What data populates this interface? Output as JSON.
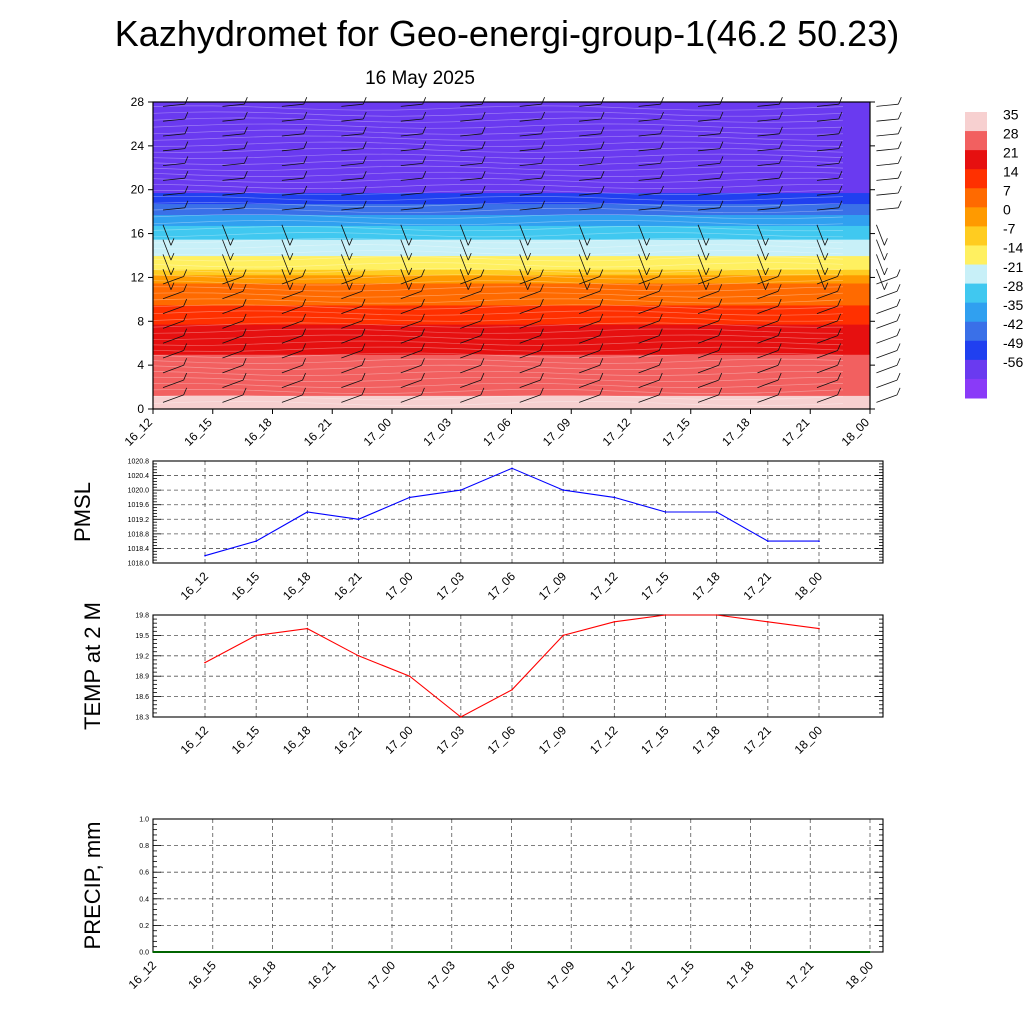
{
  "title": "Kazhydromet for Geo-energi-group-1(46.2 50.23)",
  "subtitle": "16 May 2025",
  "colors": {
    "pmsl_line": "#0000ff",
    "temp_line": "#ff0000",
    "precip_line": "#006400",
    "grid": "#555555"
  },
  "chart_data": [
    {
      "type": "heatmap",
      "title": "",
      "xlabel": "",
      "ylabel": "",
      "x_ticks": [
        "16_12",
        "16_15",
        "16_18",
        "16_21",
        "17_00",
        "17_03",
        "17_06",
        "17_09",
        "17_12",
        "17_15",
        "17_18",
        "17_21",
        "18_00"
      ],
      "ylim": [
        0,
        28
      ],
      "y_ticks": [
        "0",
        "4",
        "8",
        "12",
        "16",
        "20",
        "24",
        "28"
      ],
      "colorbar": {
        "labels": [
          "35",
          "28",
          "21",
          "14",
          "7",
          "0",
          "-7",
          "-14",
          "-21",
          "-28",
          "-35",
          "-42",
          "-49",
          "-56"
        ],
        "colors": [
          "#f7d0d0",
          "#f26060",
          "#e61010",
          "#ff3000",
          "#ff6a00",
          "#ff9a00",
          "#ffcc20",
          "#fff060",
          "#c8f0f8",
          "#40c8f0",
          "#30a0f0",
          "#3a70e8",
          "#2040f0",
          "#6a3af0",
          "#8a3af8"
        ]
      },
      "temperature_profile": {
        "levels": [
          0,
          4,
          8,
          12,
          13,
          16,
          20,
          24,
          28
        ],
        "values": [
          33,
          27,
          17,
          2,
          -12,
          -25,
          -52,
          -56,
          -56
        ]
      }
    },
    {
      "type": "line",
      "ylabel": "PMSL",
      "categories": [
        "16_12",
        "16_15",
        "16_18",
        "16_21",
        "17_00",
        "17_03",
        "17_06",
        "17_09",
        "17_12",
        "17_15",
        "17_18",
        "17_21",
        "18_00"
      ],
      "values": [
        1018.2,
        1018.6,
        1019.4,
        1019.2,
        1019.8,
        1020.0,
        1020.6,
        1020.0,
        1019.8,
        1019.4,
        1019.4,
        1018.6,
        1018.6
      ],
      "ylim": [
        1018.0,
        1020.8
      ],
      "y_ticks": [
        "1018.0",
        "1018.4",
        "1018.8",
        "1019.2",
        "1019.6",
        "1020.0",
        "1020.4",
        "1020.8"
      ]
    },
    {
      "type": "line",
      "ylabel": "TEMP at 2 M",
      "categories": [
        "16_12",
        "16_15",
        "16_18",
        "16_21",
        "17_00",
        "17_03",
        "17_06",
        "17_09",
        "17_12",
        "17_15",
        "17_18",
        "17_21",
        "18_00"
      ],
      "values": [
        19.1,
        19.5,
        19.6,
        19.2,
        18.9,
        18.3,
        18.7,
        19.5,
        19.7,
        19.8,
        19.8,
        19.7,
        19.6
      ],
      "ylim": [
        18.3,
        19.8
      ],
      "y_ticks": [
        "18.3",
        "18.6",
        "18.9",
        "19.2",
        "19.5",
        "19.8"
      ]
    },
    {
      "type": "line",
      "ylabel": "PRECIP, mm",
      "categories": [
        "16_12",
        "16_15",
        "16_18",
        "16_21",
        "17_00",
        "17_03",
        "17_06",
        "17_09",
        "17_12",
        "17_15",
        "17_18",
        "17_21",
        "18_00"
      ],
      "values": [
        0,
        0,
        0,
        0,
        0,
        0,
        0,
        0,
        0,
        0,
        0,
        0,
        0
      ],
      "ylim": [
        0.0,
        1.0
      ],
      "y_ticks": [
        "0.0",
        "0.2",
        "0.4",
        "0.6",
        "0.8",
        "1.0"
      ]
    }
  ]
}
